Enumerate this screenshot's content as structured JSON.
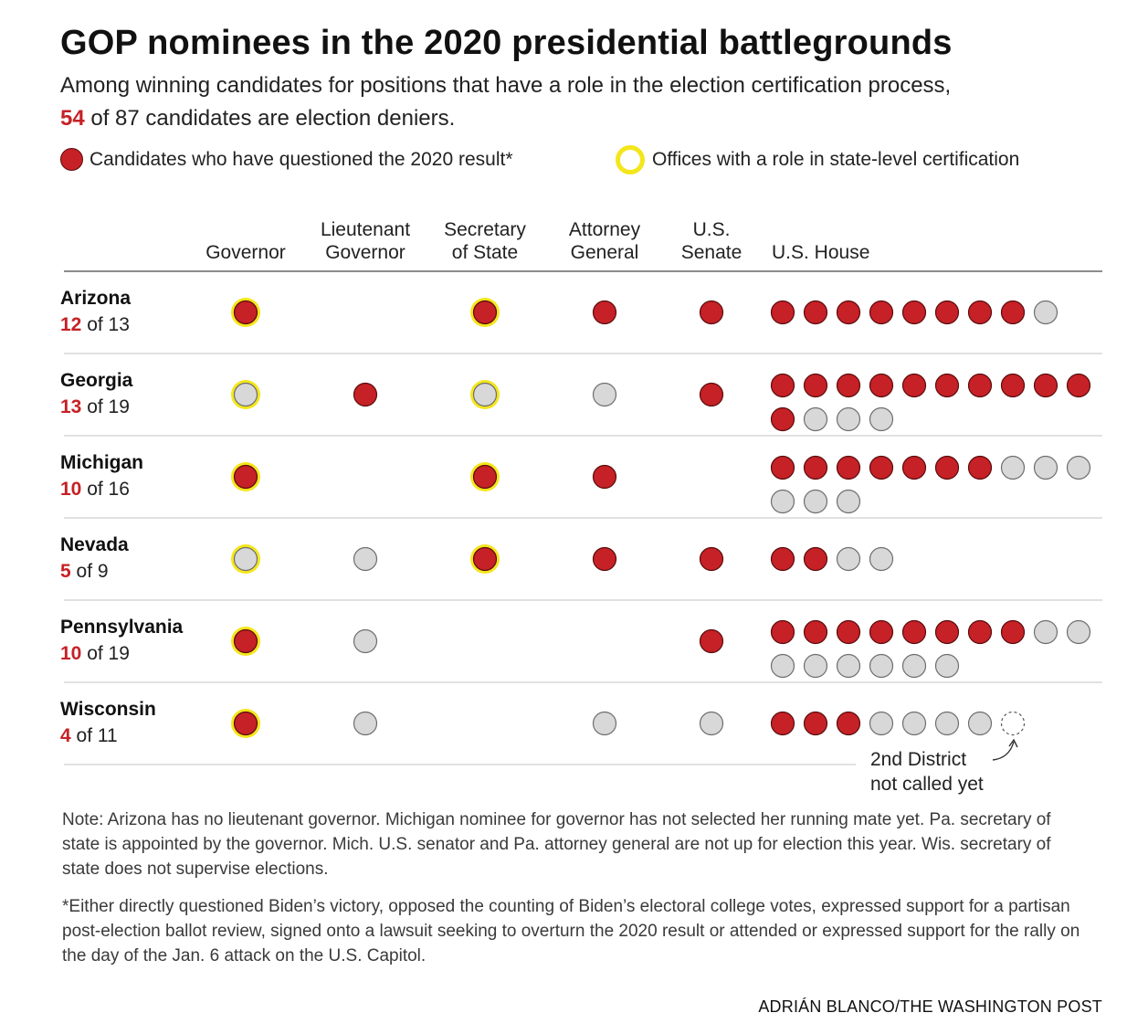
{
  "title": "GOP nominees in the 2020 presidential battlegrounds",
  "subtitle": {
    "line1": "Among winning candidates for positions that have a role in the election certification process,",
    "deniers_count": "54",
    "line2_rest": " of 87 candidates are election deniers."
  },
  "legend": {
    "questioned": "Candidates who have questioned the 2020 result*",
    "certification": "Offices with a role in state-level certification"
  },
  "colors": {
    "denier": "#c62126",
    "denier_stroke": "#5a0c0d",
    "not_denier": "#d8d8d8",
    "not_denier_stroke": "#6e6e6e",
    "certification_ring": "#f4e61c",
    "divider": "#cfcfcf"
  },
  "chart_data": {
    "type": "dot-table",
    "columns": [
      {
        "key": "governor",
        "label": [
          "Governor"
        ]
      },
      {
        "key": "lt_governor",
        "label": [
          "Lieutenant",
          "Governor"
        ]
      },
      {
        "key": "secretary_of_state",
        "label": [
          "Secretary",
          "of State"
        ]
      },
      {
        "key": "attorney_general",
        "label": [
          "Attorney",
          "General"
        ]
      },
      {
        "key": "us_senate",
        "label": [
          "U.S.",
          "Senate"
        ]
      },
      {
        "key": "us_house",
        "label": [
          "U.S. House"
        ]
      }
    ],
    "rows": [
      {
        "state": "Arizona",
        "deniers": "12",
        "total_text": " of 13",
        "governor": {
          "denier": true,
          "certification": true
        },
        "lt_governor": null,
        "secretary_of_state": {
          "denier": true,
          "certification": true
        },
        "attorney_general": {
          "denier": true,
          "certification": false
        },
        "us_senate": {
          "denier": true,
          "certification": false
        },
        "us_house": {
          "deniers": 8,
          "others": 1,
          "uncalled": 0
        }
      },
      {
        "state": "Georgia",
        "deniers": "13",
        "total_text": " of 19",
        "governor": {
          "denier": false,
          "certification": true
        },
        "lt_governor": {
          "denier": true,
          "certification": false
        },
        "secretary_of_state": {
          "denier": false,
          "certification": true
        },
        "attorney_general": {
          "denier": false,
          "certification": false
        },
        "us_senate": {
          "denier": true,
          "certification": false
        },
        "us_house": {
          "deniers": 11,
          "others": 3,
          "uncalled": 0
        }
      },
      {
        "state": "Michigan",
        "deniers": "10",
        "total_text": " of 16",
        "governor": {
          "denier": true,
          "certification": true
        },
        "lt_governor": null,
        "secretary_of_state": {
          "denier": true,
          "certification": true
        },
        "attorney_general": {
          "denier": true,
          "certification": false
        },
        "us_senate": null,
        "us_house": {
          "deniers": 7,
          "others": 6,
          "uncalled": 0
        }
      },
      {
        "state": "Nevada",
        "deniers": "5",
        "total_text": " of 9",
        "governor": {
          "denier": false,
          "certification": true
        },
        "lt_governor": {
          "denier": false,
          "certification": false
        },
        "secretary_of_state": {
          "denier": true,
          "certification": true
        },
        "attorney_general": {
          "denier": true,
          "certification": false
        },
        "us_senate": {
          "denier": true,
          "certification": false
        },
        "us_house": {
          "deniers": 2,
          "others": 2,
          "uncalled": 0
        }
      },
      {
        "state": "Pennsylvania",
        "deniers": "10",
        "total_text": " of 19",
        "governor": {
          "denier": true,
          "certification": true
        },
        "lt_governor": {
          "denier": false,
          "certification": false
        },
        "secretary_of_state": null,
        "attorney_general": null,
        "us_senate": {
          "denier": true,
          "certification": false
        },
        "us_house": {
          "deniers": 8,
          "others": 8,
          "uncalled": 0
        }
      },
      {
        "state": "Wisconsin",
        "deniers": "4",
        "total_text": " of 11",
        "governor": {
          "denier": true,
          "certification": true
        },
        "lt_governor": {
          "denier": false,
          "certification": false
        },
        "secretary_of_state": null,
        "attorney_general": {
          "denier": false,
          "certification": false
        },
        "us_senate": {
          "denier": false,
          "certification": false
        },
        "us_house": {
          "deniers": 3,
          "others": 4,
          "uncalled": 1
        }
      }
    ],
    "annotation": [
      "2nd District",
      "not called yet"
    ]
  },
  "notes": {
    "note": "Note: Arizona has no lieutenant governor. Michigan nominee for governor has not selected her running mate yet. Pa. secretary of state is appointed by the governor. Mich. U.S. senator and Pa. attorney general are not up for election this year. Wis. secretary of state does not supervise elections.",
    "footnote": "*Either directly questioned Biden’s victory, opposed the counting of Biden’s electoral college votes, expressed support for a partisan post-election ballot review, signed onto a lawsuit seeking to overturn the 2020 result or attended or expressed support for the rally on the day of the Jan. 6 attack on the U.S. Capitol."
  },
  "credit": "ADRIÁN BLANCO/THE WASHINGTON POST"
}
